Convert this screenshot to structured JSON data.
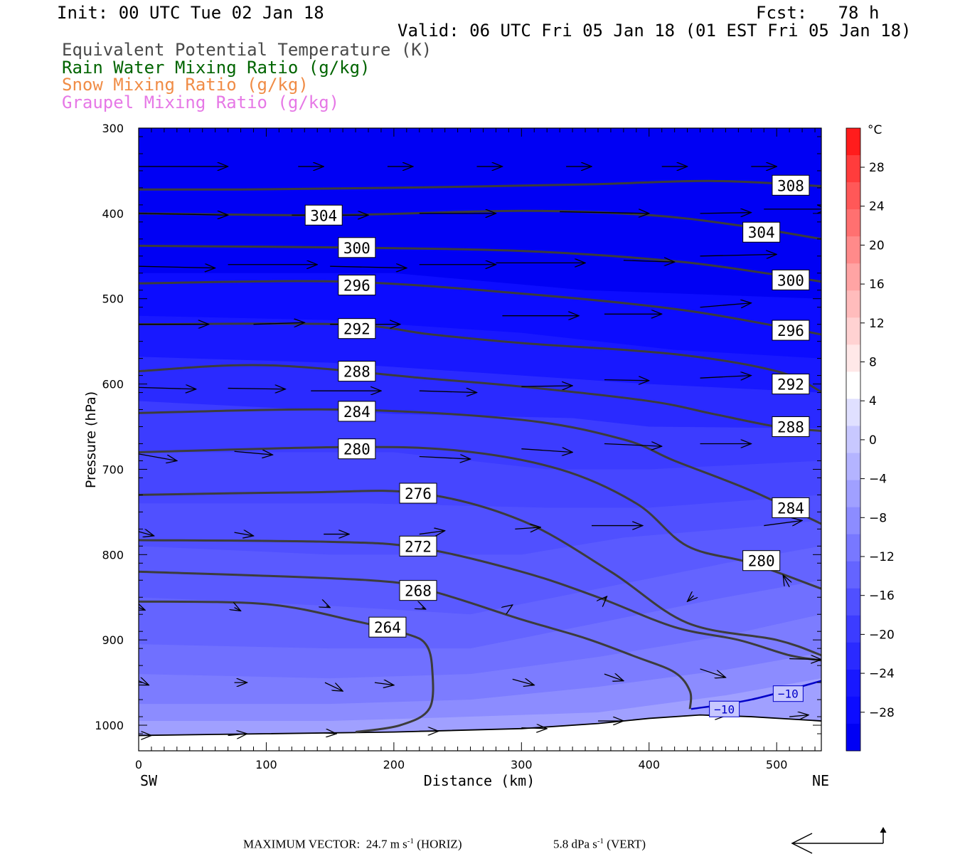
{
  "header": {
    "init": "Init: 00 UTC Tue 02 Jan 18",
    "fcst": "Fcst:   78 h",
    "valid": "Valid: 06 UTC Fri 05 Jan 18 (01 EST Fri 05 Jan 18)",
    "fields": [
      {
        "label": "Equivalent Potential Temperature (K)",
        "color": "#4a4a4a"
      },
      {
        "label": "Rain Water Mixing Ratio (g/kg)",
        "color": "#006400"
      },
      {
        "label": "Snow Mixing Ratio (g/kg)",
        "color": "#f08c46"
      },
      {
        "label": "Graupel Mixing Ratio (g/kg)",
        "color": "#e678e6"
      }
    ]
  },
  "chart_data": {
    "type": "cross-section",
    "xlabel": "Distance (km)",
    "ylabel": "Pressure (hPa)",
    "x_ticks": [
      0,
      100,
      200,
      300,
      400,
      500
    ],
    "y_ticks": [
      300,
      400,
      500,
      600,
      700,
      800,
      900,
      1000
    ],
    "xlim": [
      0,
      535
    ],
    "ylim": [
      300,
      1030
    ],
    "y_scale": "linear (inverted)",
    "left_end": "SW",
    "right_end": "NE",
    "colorbar": {
      "unit": "°C",
      "labels": [
        28,
        24,
        20,
        16,
        12,
        8,
        4,
        0,
        -4,
        -8,
        -12,
        -16,
        -20,
        -24,
        -28
      ],
      "colors": [
        "#ff1c1c",
        "#ff3c3c",
        "#ff5858",
        "#ff7070",
        "#ff8a8a",
        "#ffa4a4",
        "#ffbcbc",
        "#ffd2d2",
        "#ffe8e8",
        "#ffffff",
        "#e0e0ff",
        "#c8c8ff",
        "#b4b4ff",
        "#a0a0ff",
        "#8c8cff",
        "#7878ff",
        "#6464ff",
        "#5050ff",
        "#3c3cff",
        "#2a2aff",
        "#1818ff",
        "#0c0cff",
        "#0000f4"
      ]
    },
    "theta_e_contours": [
      {
        "value": 308,
        "label": "308",
        "points": [
          [
            0,
            372
          ],
          [
            80,
            372
          ],
          [
            200,
            370
          ],
          [
            350,
            366
          ],
          [
            450,
            362
          ],
          [
            535,
            368
          ]
        ]
      },
      {
        "value": 304,
        "label": "304",
        "points": [
          [
            0,
            400
          ],
          [
            150,
            402
          ],
          [
            300,
            397
          ],
          [
            400,
            402
          ],
          [
            470,
            414
          ],
          [
            535,
            430
          ]
        ]
      },
      {
        "value": 300,
        "label": "300",
        "points": [
          [
            0,
            438
          ],
          [
            160,
            440
          ],
          [
            300,
            444
          ],
          [
            420,
            456
          ],
          [
            500,
            472
          ],
          [
            535,
            480
          ]
        ]
      },
      {
        "value": 296,
        "label": "296",
        "points": [
          [
            0,
            482
          ],
          [
            160,
            480
          ],
          [
            300,
            494
          ],
          [
            420,
            512
          ],
          [
            500,
            532
          ],
          [
            535,
            542
          ]
        ]
      },
      {
        "value": 292,
        "label": "292",
        "points": [
          [
            0,
            530
          ],
          [
            160,
            530
          ],
          [
            230,
            542
          ],
          [
            300,
            552
          ],
          [
            420,
            565
          ],
          [
            500,
            585
          ],
          [
            535,
            609
          ]
        ]
      },
      {
        "value": 288,
        "label": "288",
        "points": [
          [
            0,
            585
          ],
          [
            100,
            578
          ],
          [
            230,
            594
          ],
          [
            300,
            603
          ],
          [
            400,
            620
          ],
          [
            450,
            635
          ],
          [
            500,
            650
          ],
          [
            535,
            655
          ]
        ]
      },
      {
        "value": 284,
        "label": "284",
        "points": [
          [
            0,
            634
          ],
          [
            160,
            630
          ],
          [
            300,
            642
          ],
          [
            380,
            665
          ],
          [
            420,
            690
          ],
          [
            480,
            725
          ],
          [
            535,
            764
          ]
        ]
      },
      {
        "value": 280,
        "label": "280",
        "points": [
          [
            0,
            680
          ],
          [
            160,
            674
          ],
          [
            250,
            678
          ],
          [
            330,
            700
          ],
          [
            390,
            740
          ],
          [
            430,
            790
          ],
          [
            480,
            810
          ],
          [
            535,
            840
          ]
        ]
      },
      {
        "value": 276,
        "label": "276",
        "points": [
          [
            0,
            730
          ],
          [
            130,
            727
          ],
          [
            220,
            728
          ],
          [
            300,
            760
          ],
          [
            370,
            820
          ],
          [
            430,
            880
          ],
          [
            500,
            900
          ],
          [
            535,
            918
          ]
        ]
      },
      {
        "value": 272,
        "label": "272",
        "points": [
          [
            0,
            783
          ],
          [
            150,
            785
          ],
          [
            220,
            792
          ],
          [
            300,
            820
          ],
          [
            360,
            850
          ],
          [
            420,
            885
          ],
          [
            470,
            900
          ],
          [
            510,
            918
          ],
          [
            535,
            924
          ]
        ]
      },
      {
        "value": 268,
        "label": "268",
        "points": [
          [
            0,
            820
          ],
          [
            180,
            830
          ],
          [
            230,
            843
          ],
          [
            300,
            876
          ],
          [
            350,
            898
          ],
          [
            390,
            920
          ],
          [
            420,
            938
          ],
          [
            432,
            960
          ],
          [
            432,
            981
          ]
        ]
      },
      {
        "value": 264,
        "label": "264",
        "points": [
          [
            0,
            855
          ],
          [
            100,
            858
          ],
          [
            170,
            878
          ],
          [
            210,
            893
          ],
          [
            225,
            905
          ],
          [
            230,
            933
          ],
          [
            228,
            980
          ],
          [
            205,
            1000
          ],
          [
            170,
            1008
          ]
        ]
      }
    ],
    "temperature_contours": [
      {
        "value": -10,
        "label": "−10",
        "points": [
          [
            433,
            981
          ],
          [
            480,
            970
          ],
          [
            535,
            948
          ]
        ]
      }
    ],
    "max_vector": {
      "horizontal": "MAXIMUM VECTOR:  24.7 m s",
      "horizontal_unit": "(HORIZ)",
      "vertical": "5.8 dPa s",
      "vertical_unit": "(VERT)",
      "exponent": "-1"
    }
  }
}
